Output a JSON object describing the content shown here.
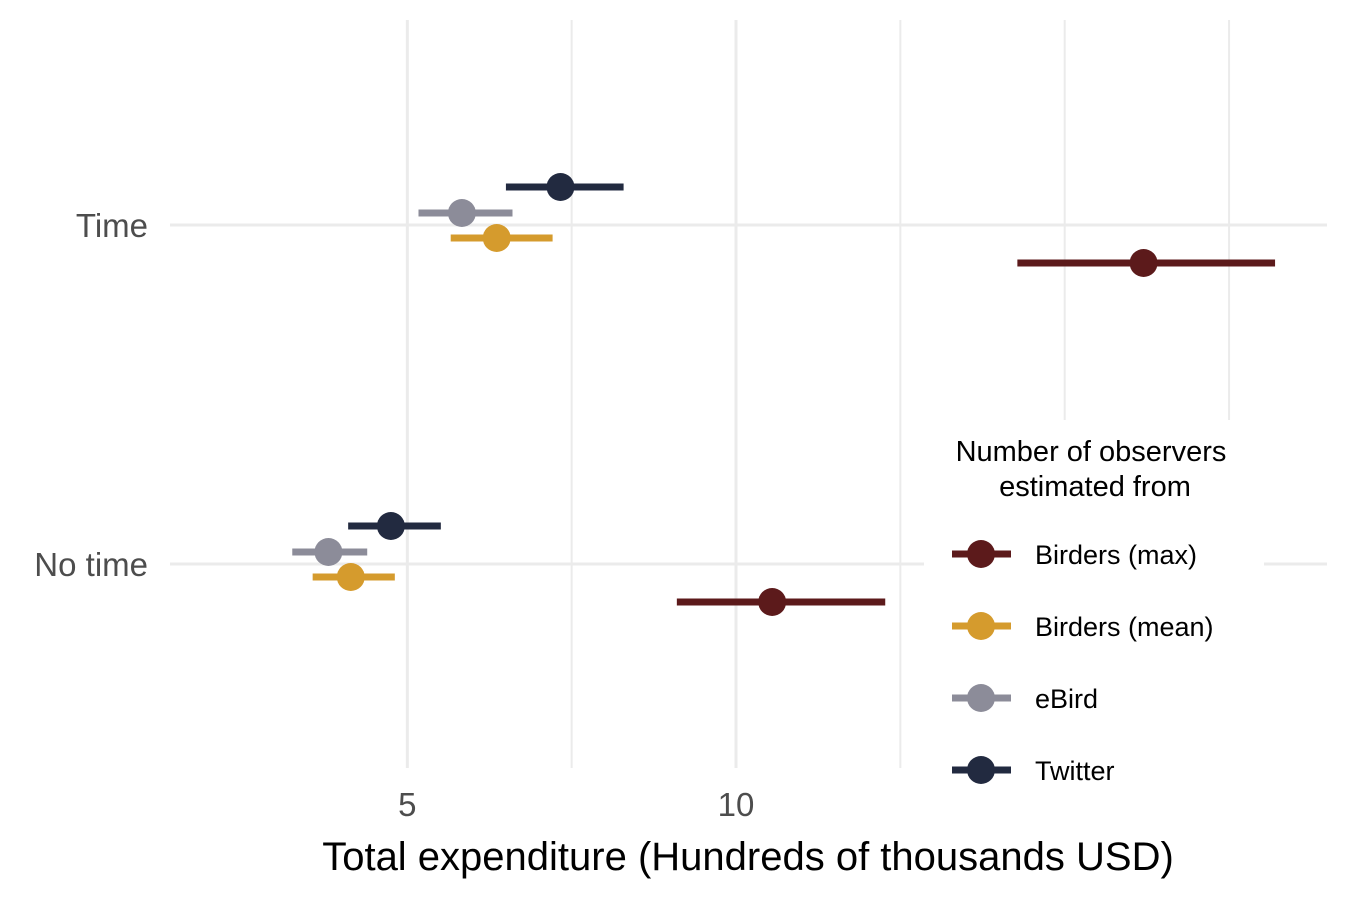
{
  "chart_data": {
    "type": "forest",
    "title": "",
    "xlabel": "Total expenditure (Hundreds of thousands USD)",
    "ylabel": "",
    "categories": [
      "Time",
      "No time"
    ],
    "x_ticks": [
      5,
      10
    ],
    "x_minor_ticks": [
      7.5,
      12.5,
      15,
      17.5
    ],
    "xlim": [
      1.39,
      18.99
    ],
    "grid": true,
    "legend_placement": "bottom-right",
    "legend_title": [
      "Number of observers",
      "estimated from"
    ],
    "series": [
      {
        "name": "Birders (max)",
        "color": "#5c1a1b",
        "points": [
          {
            "category": "Time",
            "estimate": 16.2,
            "low": 14.28,
            "high": 18.2
          },
          {
            "category": "No time",
            "estimate": 10.55,
            "low": 9.1,
            "high": 12.27
          }
        ]
      },
      {
        "name": "Birders (mean)",
        "color": "#d59b2d",
        "points": [
          {
            "category": "Time",
            "estimate": 6.36,
            "low": 5.66,
            "high": 7.21
          },
          {
            "category": "No time",
            "estimate": 4.14,
            "low": 3.56,
            "high": 4.81
          }
        ]
      },
      {
        "name": "eBird",
        "color": "#8c8c99",
        "points": [
          {
            "category": "Time",
            "estimate": 5.83,
            "low": 5.17,
            "high": 6.6
          },
          {
            "category": "No time",
            "estimate": 3.8,
            "low": 3.25,
            "high": 4.39
          }
        ]
      },
      {
        "name": "Twitter",
        "color": "#222a40",
        "points": [
          {
            "category": "Time",
            "estimate": 7.33,
            "low": 6.5,
            "high": 8.29
          },
          {
            "category": "No time",
            "estimate": 4.75,
            "low": 4.1,
            "high": 5.51
          }
        ]
      }
    ]
  }
}
